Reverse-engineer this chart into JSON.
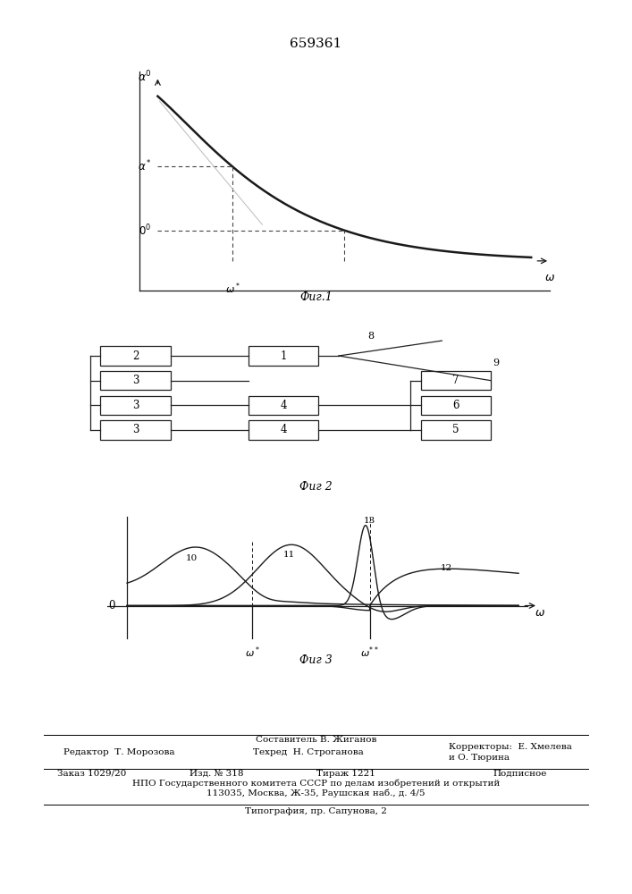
{
  "title": "659361",
  "title_fontsize": 11,
  "fig1_caption": "Фиг.1",
  "fig2_caption": "Фиг 2",
  "fig3_caption": "Фиг 3",
  "bg_color": "#ffffff",
  "line_color": "#1a1a1a",
  "dashed_color": "#444444",
  "footer_line1": "Составитель В. Жиганов",
  "footer_editor": "Редактор  Т. Морозова",
  "footer_techred": "Техред  Н. Строганова",
  "footer_correctors1": "Корректоры:  Е. Хмелева",
  "footer_correctors2": "и О. Тюрина",
  "footer_order": "Заказ 1029/20",
  "footer_izd": "Изд. № 318",
  "footer_tirazh": "Тираж 1221",
  "footer_podpis": "Подписное",
  "footer_npo": "НПО Государственного комитета СССР по делам изобретений и открытий",
  "footer_address": "113035, Москва, Ж-35, Раушская наб., д. 4/5",
  "footer_tipografia": "Типография, пр. Сапунова, 2"
}
